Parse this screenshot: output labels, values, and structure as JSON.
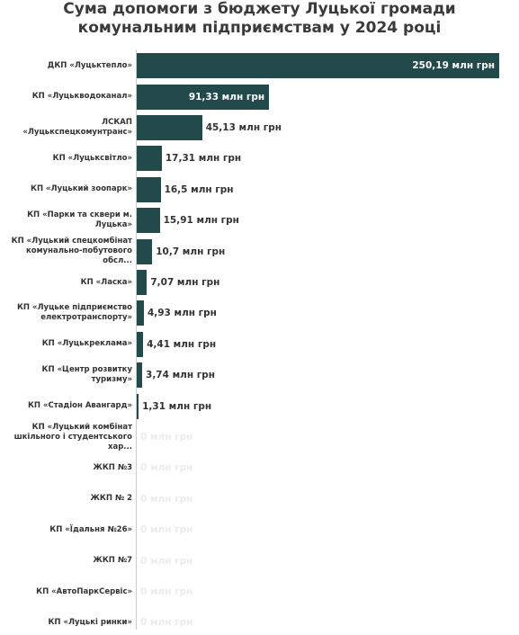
{
  "chart_data": {
    "type": "bar",
    "orientation": "horizontal",
    "title": "Сума допомоги з бюджету Луцької громади комунальним підприємствам у 2024 році",
    "color": "#234a4b",
    "categories": [
      "ДКП «Луцьктепло»",
      "КП «Луцькводоканал»",
      "ЛСКАП «Луцькспецкомунтранс»",
      "КП «Луцьксвітло»",
      "КП «Луцький зоопарк»",
      "КП «Парки та сквери м. Луцька»",
      "КП «Луцький спецкомбінат комунально-побутового обсл...",
      "КП «Ласка»",
      "КП «Луцьке підприємство електротранспорту»",
      "КП «Луцькреклама»",
      "КП «Центр розвитку туризму»",
      "КП «Стадіон Авангард»",
      "КП «Луцький комбінат шкільного і студентського хар...",
      "ЖКП №3",
      "ЖКП № 2",
      "КП «Їдальня №26»",
      "ЖКП №7",
      "КП «АвтоПаркСервіс»",
      "КП «Луцькі ринки»"
    ],
    "values": [
      250.19,
      91.33,
      45.13,
      17.31,
      16.5,
      15.91,
      10.7,
      7.07,
      4.93,
      4.41,
      3.74,
      1.31,
      0,
      0,
      0,
      0,
      0,
      0,
      0
    ],
    "value_labels": [
      "250,19 млн грн",
      "91,33 млн грн",
      "45,13 млн грн",
      "17,31 млн грн",
      "16,5 млн грн",
      "15,91 млн грн",
      "10,7 млн грн",
      "7,07 млн грн",
      "4,93 млн грн",
      "4,41 млн грн",
      "3,74 млн грн",
      "1,31 млн грн",
      "0 млн грн",
      "0 млн грн",
      "0 млн грн",
      "0 млн грн",
      "0 млн грн",
      "0 млн грн",
      "0 млн грн"
    ]
  }
}
